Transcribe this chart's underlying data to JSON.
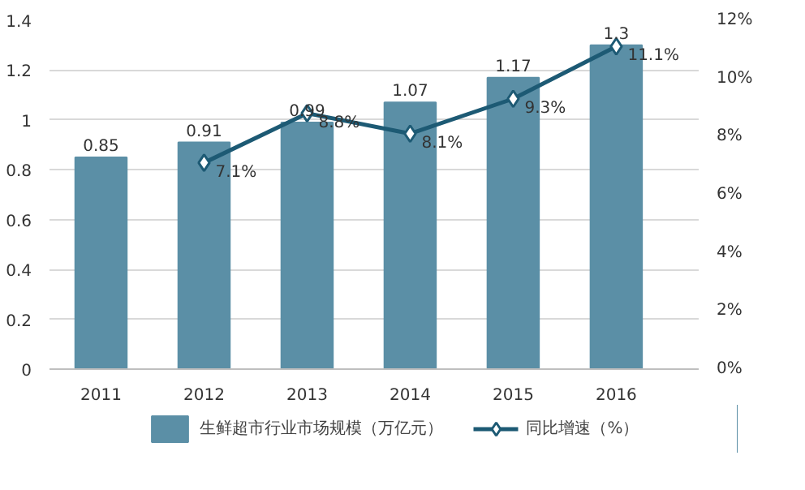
{
  "chart_data": {
    "type": "bar",
    "categories": [
      "2011",
      "2012",
      "2013",
      "2014",
      "2015",
      "2016"
    ],
    "series": [
      {
        "name": "生鲜超市行业市场规模（万亿元）",
        "color": "#5b8fa6",
        "values": [
          0.85,
          0.91,
          0.99,
          1.07,
          1.17,
          1.3
        ],
        "value_labels": [
          "0.85",
          "0.91",
          "0.99",
          "1.07",
          "1.17",
          "1.3"
        ]
      },
      {
        "name": "同比增速（%）",
        "type": "line",
        "axis": "y2",
        "color": "#1d5a74",
        "marker": "diamond",
        "values": [
          null,
          7.1,
          8.8,
          8.1,
          9.3,
          11.1
        ],
        "value_labels": [
          null,
          "7.1%",
          "8.8%",
          "8.1%",
          "9.3%",
          "11.1%"
        ]
      }
    ],
    "ylim": [
      0,
      1.4
    ],
    "yticks": [
      0,
      0.2,
      0.4,
      0.6,
      0.8,
      1,
      1.2,
      1.4
    ],
    "y2lim": [
      0,
      12
    ],
    "y2ticks": [
      {
        "value": 0,
        "label": "0%"
      },
      {
        "value": 2,
        "label": "2%"
      },
      {
        "value": 4,
        "label": "4%"
      },
      {
        "value": 6,
        "label": "6%"
      },
      {
        "value": 8,
        "label": "8%"
      },
      {
        "value": 10,
        "label": "10%"
      },
      {
        "value": 12,
        "label": "12%"
      }
    ],
    "grid": "y",
    "legend": "bottom"
  }
}
